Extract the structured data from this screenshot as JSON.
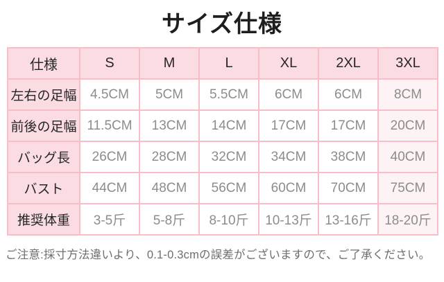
{
  "title": "サイズ仕様",
  "table": {
    "header": [
      "仕様",
      "S",
      "M",
      "L",
      "XL",
      "2XL",
      "3XL"
    ],
    "rows": [
      {
        "label": "左右の足幅",
        "values": [
          "4.5CM",
          "5CM",
          "5.5CM",
          "6CM",
          "6CM",
          "8CM"
        ]
      },
      {
        "label": "前後の足幅",
        "values": [
          "11.5CM",
          "13CM",
          "14CM",
          "17CM",
          "17CM",
          "20CM"
        ]
      },
      {
        "label": "バッグ長",
        "values": [
          "26CM",
          "28CM",
          "32CM",
          "34CM",
          "38CM",
          "40CM"
        ]
      },
      {
        "label": "バスト",
        "values": [
          "44CM",
          "48CM",
          "56CM",
          "60CM",
          "70CM",
          "75CM"
        ]
      },
      {
        "label": "推奨体重",
        "values": [
          "3-5斤",
          "5-8斤",
          "8-10斤",
          "10-13斤",
          "13-16斤",
          "18-20斤"
        ]
      }
    ]
  },
  "note": "ご注意:採寸方法違いより、0.1-0.3cmの誤差がございますので、ご了承ください。",
  "colors": {
    "header_bg": "#fbdce2",
    "border_pink": "#f9bdc8",
    "last_column_bg": "#fdf3f5",
    "data_text": "#8c8c8c",
    "label_text": "#262626",
    "note_text": "#6e6e6e",
    "title_text": "#1e1e1e"
  }
}
